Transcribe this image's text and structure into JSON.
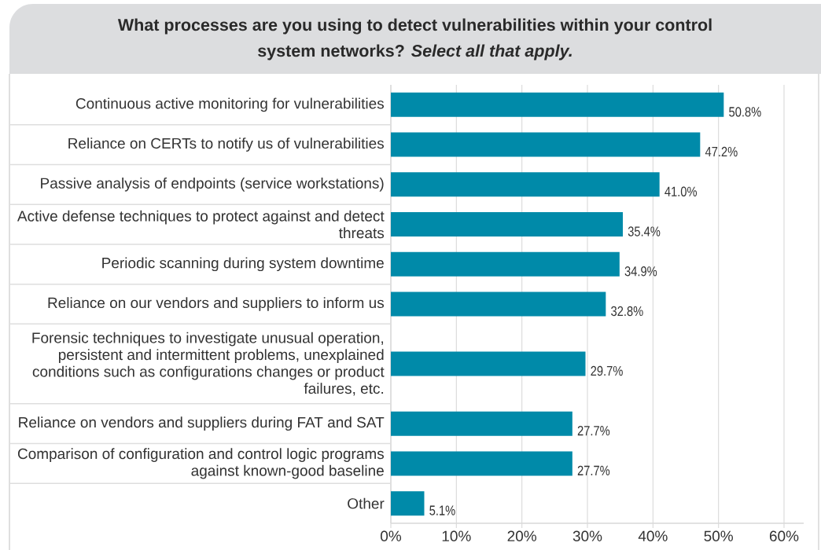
{
  "chart_data": {
    "type": "bar",
    "orientation": "horizontal",
    "title": "What processes are you using to detect vulnerabilities within your control system networks? *Select all that apply.*",
    "categories": [
      "Continuous active monitoring for vulnerabilities",
      "Reliance on CERTs to notify us of vulnerabilities",
      "Passive analysis of endpoints (service workstations)",
      "Active defense techniques to protect against and detect threats",
      "Periodic scanning during system downtime",
      "Reliance on our vendors and suppliers to inform us",
      "Forensic techniques to investigate unusual operation, persistent and intermittent problems, unexplained conditions such as configurations changes or product failures, etc.",
      "Reliance on vendors and suppliers during FAT and SAT",
      "Comparison of configuration and control logic programs against known-good baseline",
      "Other"
    ],
    "values": [
      50.8,
      47.2,
      41.0,
      35.4,
      34.9,
      32.8,
      29.7,
      27.7,
      27.7,
      5.1
    ],
    "value_labels": [
      "50.8%",
      "47.2%",
      "41.0%",
      "35.4%",
      "34.9%",
      "32.8%",
      "29.7%",
      "27.7%",
      "27.7%",
      "5.1%"
    ],
    "color": "#008aa9",
    "xlim": [
      0,
      63
    ],
    "xticks": [
      {
        "value": 0,
        "label": "0%"
      },
      {
        "value": 10,
        "label": "10%"
      },
      {
        "value": 20,
        "label": "20%"
      },
      {
        "value": 30,
        "label": "30%"
      },
      {
        "value": 40,
        "label": "40%"
      },
      {
        "value": 50,
        "label": "50%"
      },
      {
        "value": 60,
        "label": "60%"
      }
    ],
    "grid": "x"
  }
}
